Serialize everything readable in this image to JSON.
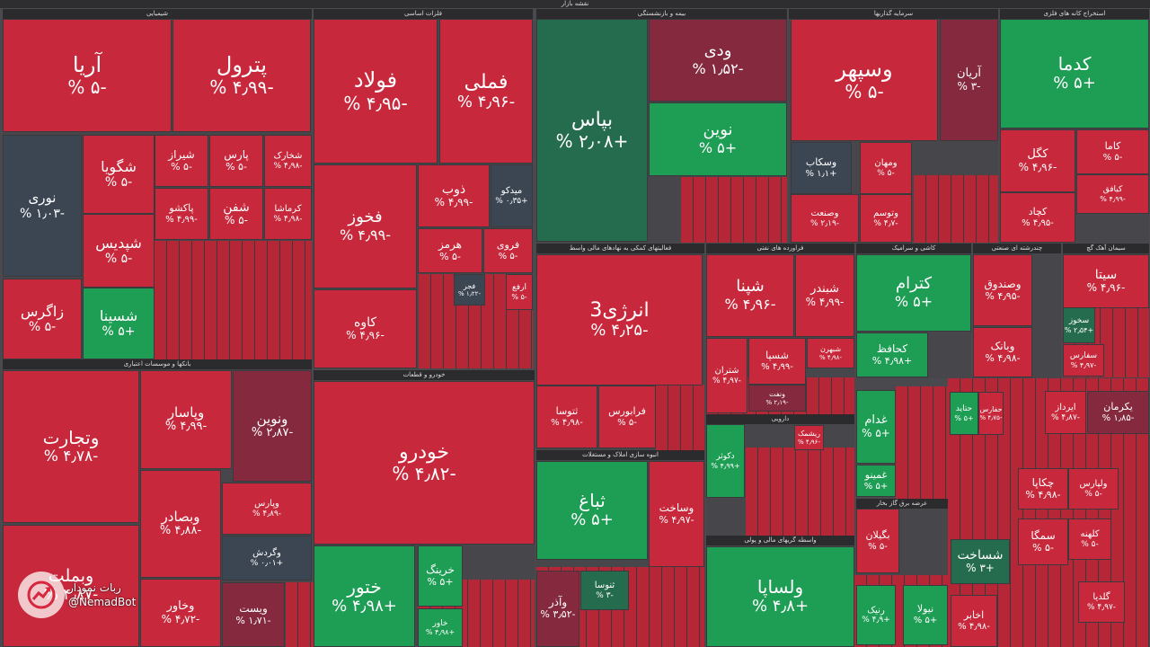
{
  "title": "نقشه بازار",
  "colors": {
    "red": "#c8283b",
    "green": "#1e9e55",
    "dark_green": "#256b4d",
    "dark_red": "#84293e",
    "gray": "#3c4653"
  },
  "sectors": [
    {
      "id": "s-chem",
      "label": "شیمیایی"
    },
    {
      "id": "s-metal",
      "label": "فلزات اساسی"
    },
    {
      "id": "s-ins",
      "label": "بیمه و بازنشستگی"
    },
    {
      "id": "s-inv",
      "label": "سرمایه گذاریها"
    },
    {
      "id": "s-mine",
      "label": "استخراج کانه های فلزی"
    },
    {
      "id": "s-bank",
      "label": "بانکها و موسسات اعتباری"
    },
    {
      "id": "s-aux",
      "label": "فعالیتهای کمکی به نهادهای مالی واسط"
    },
    {
      "id": "s-oil",
      "label": "فراورده های نفتی"
    },
    {
      "id": "s-cem",
      "label": "سیمان آهک گچ"
    },
    {
      "id": "s-auto",
      "label": "خودرو و قطعات"
    },
    {
      "id": "s-build",
      "label": "انبوه سازی املاک و مستغلات"
    },
    {
      "id": "s-pharma",
      "label": "دارویی"
    },
    {
      "id": "s-tile",
      "label": "کاشی و سرامیک"
    },
    {
      "id": "s-multi",
      "label": "چندرشته ای صنعتی"
    },
    {
      "id": "s-trade",
      "label": "عرضه برق گاز بخار"
    },
    {
      "id": "s-leasing",
      "label": "واسطه گریهای مالی و پولی"
    }
  ],
  "chart_data": {
    "type": "treemap",
    "title": "نقشه بازار",
    "tiles": [
      {
        "name": "آریا",
        "change": "-۵ %",
        "value": -5
      },
      {
        "name": "پترول",
        "change": "-۴٫۹۹ %",
        "value": -4.99
      },
      {
        "name": "فولاد",
        "change": "-۴٫۹۵ %",
        "value": -4.95
      },
      {
        "name": "فملی",
        "change": "-۴٫۹۶ %",
        "value": -4.96
      },
      {
        "name": "بپاس",
        "change": "+۲٫۰۸ %",
        "value": 2.08
      },
      {
        "name": "ودی",
        "change": "-۱٫۵۲ %",
        "value": -1.52
      },
      {
        "name": "نوین",
        "change": "+۵ %",
        "value": 5
      },
      {
        "name": "وسپهر",
        "change": "-۵ %",
        "value": -5
      },
      {
        "name": "آریان",
        "change": "-۳ %",
        "value": -3
      },
      {
        "name": "کدما",
        "change": "+۵ %",
        "value": 5
      },
      {
        "name": "نوری",
        "change": "-۱٫۰۳ %",
        "value": -1.03
      },
      {
        "name": "شگویا",
        "change": "-۵ %",
        "value": -5
      },
      {
        "name": "شیراز",
        "change": "-۵ %",
        "value": -5
      },
      {
        "name": "پارس",
        "change": "-۵ %",
        "value": -5
      },
      {
        "name": "شخارک",
        "change": "-۴٫۹۸ %",
        "value": -4.98
      },
      {
        "name": "شپدیس",
        "change": "-۵ %",
        "value": -5
      },
      {
        "name": "پاکشو",
        "change": "-۴٫۹۹ %",
        "value": -4.99
      },
      {
        "name": "شفن",
        "change": "-۵ %",
        "value": -5
      },
      {
        "name": "کرماشا",
        "change": "-۴٫۹۸ %",
        "value": -4.98
      },
      {
        "name": "زاگرس",
        "change": "-۵ %",
        "value": -5
      },
      {
        "name": "شسینا",
        "change": "+۵ %",
        "value": 5
      },
      {
        "name": "فخوز",
        "change": "-۴٫۹۹ %",
        "value": -4.99
      },
      {
        "name": "ذوب",
        "change": "-۴٫۹۹ %",
        "value": -4.99
      },
      {
        "name": "میدکو",
        "change": "+۰٫۳۵ %",
        "value": 0.35
      },
      {
        "name": "هرمز",
        "change": "-۵ %",
        "value": -5
      },
      {
        "name": "فروی",
        "change": "-۵ %",
        "value": -5
      },
      {
        "name": "کاوه",
        "change": "-۴٫۹۶ %",
        "value": -4.96
      },
      {
        "name": "فجر",
        "change": "-۱٫۲۲ %",
        "value": -1.22
      },
      {
        "name": "وسکاب",
        "change": "+۱٫۱ %",
        "value": 1.1
      },
      {
        "name": "ومهان",
        "change": "-۵ %",
        "value": -5
      },
      {
        "name": "وتوسم",
        "change": "-۴٫۷ %",
        "value": -4.7
      },
      {
        "name": "وصنعت",
        "change": "-۲٫۱۹ %",
        "value": -2.19
      },
      {
        "name": "کگل",
        "change": "-۴٫۹۶ %",
        "value": -4.96
      },
      {
        "name": "کاما",
        "change": "-۵ %",
        "value": -5
      },
      {
        "name": "کچاد",
        "change": "-۴٫۹۵ %",
        "value": -4.95
      },
      {
        "name": "کیافق",
        "change": "-۴٫۹۹ %",
        "value": -4.99
      },
      {
        "name": "وتجارت",
        "change": "-۴٫۷۸ %",
        "value": -4.78
      },
      {
        "name": "وپاسار",
        "change": "-۴٫۹۹ %",
        "value": -4.99
      },
      {
        "name": "ونوین",
        "change": "-۲٫۸۷ %",
        "value": -2.87
      },
      {
        "name": "وپارس",
        "change": "-۴٫۸۹ %",
        "value": -4.89
      },
      {
        "name": "وبصادر",
        "change": "-۴٫۸۸ %",
        "value": -4.88
      },
      {
        "name": "وگردش",
        "change": "+۰٫۰۱ %",
        "value": 0.01
      },
      {
        "name": "وبملت",
        "change": "-۴٫۸۷ %",
        "value": -4.87
      },
      {
        "name": "وخاور",
        "change": "-۴٫۷۲ %",
        "value": -4.72
      },
      {
        "name": "ویست",
        "change": "-۱٫۷۱ %",
        "value": -1.71
      },
      {
        "name": "انرژی3",
        "change": "-۴٫۲۵ %",
        "value": -4.25
      },
      {
        "name": "شپنا",
        "change": "-۴٫۹۶ %",
        "value": -4.96
      },
      {
        "name": "شبندر",
        "change": "-۴٫۹۹ %",
        "value": -4.99
      },
      {
        "name": "شتران",
        "change": "-۴٫۹۷ %",
        "value": -4.97
      },
      {
        "name": "شسپا",
        "change": "-۴٫۹۹ %",
        "value": -4.99
      },
      {
        "name": "شبهرن",
        "change": "-۴٫۹۸ %",
        "value": -4.98
      },
      {
        "name": "ونفت",
        "change": "-۲٫۱۹ %",
        "value": -2.19
      },
      {
        "name": "کترام",
        "change": "+۵ %",
        "value": 5
      },
      {
        "name": "کحافظ",
        "change": "+۴٫۹۸ %",
        "value": 4.98
      },
      {
        "name": "وصندوق",
        "change": "-۴٫۹۵ %",
        "value": -4.95
      },
      {
        "name": "وبانک",
        "change": "-۴٫۹۸ %",
        "value": -4.98
      },
      {
        "name": "سیتا",
        "change": "-۴٫۹۶ %",
        "value": -4.96
      },
      {
        "name": "سخوز",
        "change": "+۲٫۵۴ %",
        "value": 2.54
      },
      {
        "name": "سفارس",
        "change": "-۴٫۹۷ %",
        "value": -4.97
      },
      {
        "name": "خودرو",
        "change": "-۴٫۸۲ %",
        "value": -4.82
      },
      {
        "name": "خاور",
        "change": "+۴٫۹۸ %",
        "value": 4.98
      },
      {
        "name": "ختور",
        "change": "+۴٫۹۸ %",
        "value": 4.98
      },
      {
        "name": "خرینگ",
        "change": "+۵ %",
        "value": 5
      },
      {
        "name": "ثباغ",
        "change": "+۵ %",
        "value": 5
      },
      {
        "name": "وساخت",
        "change": "-۴٫۹۷ %",
        "value": -4.97
      },
      {
        "name": "ثتوسا",
        "change": "-۴٫۹۸ %",
        "value": -4.98
      },
      {
        "name": "فرابورس",
        "change": "-۵ %",
        "value": -5
      },
      {
        "name": "دکوثر",
        "change": "+۴٫۹۹ %",
        "value": 4.99
      },
      {
        "name": "ریشمک",
        "change": "-۴٫۹۶ %",
        "value": -4.96
      },
      {
        "name": "غدام",
        "change": "+۵ %",
        "value": 5
      },
      {
        "name": "غمینو",
        "change": "+۵ %",
        "value": 5
      },
      {
        "name": "خپارس",
        "change": "+۴٫۹۸ %",
        "value": 4.98
      },
      {
        "name": "حفارس",
        "change": "-۴٫۷۵ %",
        "value": -4.75
      },
      {
        "name": "ارفع",
        "change": "-۵ %",
        "value": -5
      },
      {
        "name": "ولساپا",
        "change": "+۴٫۸ %",
        "value": 4.8
      },
      {
        "name": "شساخت",
        "change": "+۳ %",
        "value": 3
      },
      {
        "name": "وآذر",
        "change": "-۳٫۵۲ %",
        "value": -3.52
      },
      {
        "name": "ثنوسا",
        "change": "-۳ %",
        "value": -3
      },
      {
        "name": "بگیلان",
        "change": "-۵ %",
        "value": -5
      },
      {
        "name": "رنیک",
        "change": "+۴٫۹ %",
        "value": 4.9
      },
      {
        "name": "نیولا",
        "change": "+۵ %",
        "value": 5
      },
      {
        "name": "یکرمان",
        "change": "-۱٫۸۵ %",
        "value": -1.85
      },
      {
        "name": "ایرداز",
        "change": "-۴٫۸۷ %",
        "value": -4.87
      },
      {
        "name": "چکاپا",
        "change": "-۴٫۹۸ %",
        "value": -4.98
      },
      {
        "name": "سمگا",
        "change": "-۵ %",
        "value": -5
      },
      {
        "name": "کلهنه",
        "change": "-۵ %",
        "value": -5
      },
      {
        "name": "اخابر",
        "change": "-۴٫۹۸ %",
        "value": -4.98
      },
      {
        "name": "حتاید",
        "change": "+۵ %",
        "value": 5
      },
      {
        "name": "ولپارس",
        "change": "-۵ %",
        "value": -5
      },
      {
        "name": "گلدیا",
        "change": "-۴٫۹۷ %",
        "value": -4.97
      }
    ]
  },
  "watermark": {
    "line1": "ربات نمودار",
    "line2": "@NemadBot"
  }
}
